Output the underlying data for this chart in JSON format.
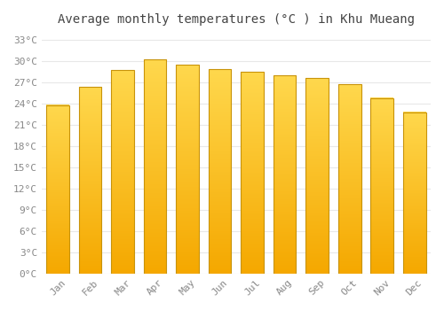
{
  "title": "Average monthly temperatures (°C ) in Khu Mueang",
  "months": [
    "Jan",
    "Feb",
    "Mar",
    "Apr",
    "May",
    "Jun",
    "Jul",
    "Aug",
    "Sep",
    "Oct",
    "Nov",
    "Dec"
  ],
  "temperatures": [
    23.8,
    26.4,
    28.7,
    30.2,
    29.5,
    28.9,
    28.5,
    28.0,
    27.6,
    26.7,
    24.8,
    22.8
  ],
  "bar_color_bottom": "#F5A800",
  "bar_color_top": "#FFD84D",
  "bar_border_color": "#C8930A",
  "ylim": [
    0,
    34
  ],
  "yticks": [
    0,
    3,
    6,
    9,
    12,
    15,
    18,
    21,
    24,
    27,
    30,
    33
  ],
  "ytick_labels": [
    "0°C",
    "3°C",
    "6°C",
    "9°C",
    "12°C",
    "15°C",
    "18°C",
    "21°C",
    "24°C",
    "27°C",
    "30°C",
    "33°C"
  ],
  "background_color": "#ffffff",
  "grid_color": "#e8e8e8",
  "title_fontsize": 10,
  "tick_fontsize": 8,
  "bar_width": 0.7
}
